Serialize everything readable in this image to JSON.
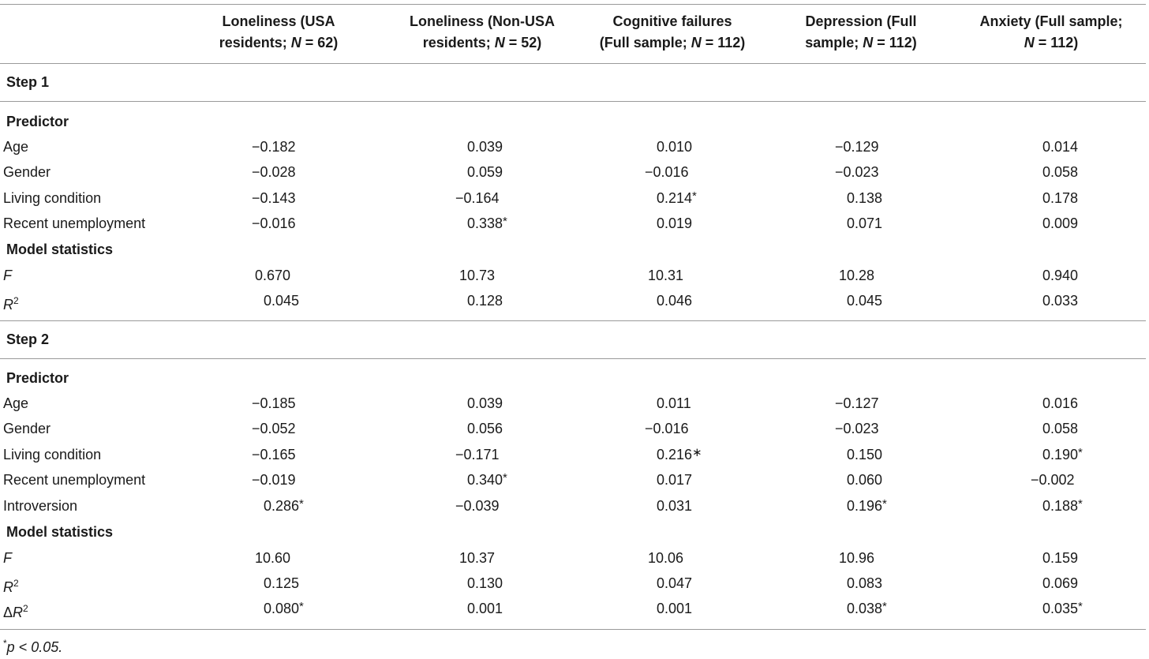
{
  "headers": [
    {
      "line1": "Loneliness (USA",
      "line2a": "residents; ",
      "line2n": "N",
      "line2b": " = 62)"
    },
    {
      "line1": "Loneliness (Non-USA",
      "line2a": "residents; ",
      "line2n": "N",
      "line2b": " = 52)"
    },
    {
      "line1": "Cognitive failures",
      "line2a": "(Full sample; ",
      "line2n": "N",
      "line2b": " = 112)"
    },
    {
      "line1": "Depression (Full",
      "line2a": "sample; ",
      "line2n": "N",
      "line2b": " = 112)"
    },
    {
      "line1": "Anxiety (Full sample;",
      "line2a": "",
      "line2n": "N",
      "line2b": " = 112)"
    }
  ],
  "step1": {
    "title": "Step 1",
    "predictor_heading": "Predictor",
    "rows": [
      {
        "label": "Age",
        "values": [
          "−0.182",
          "0.039",
          "0.010",
          "−0.129",
          "0.014"
        ],
        "stars": [
          "",
          "",
          "",
          "",
          ""
        ]
      },
      {
        "label": "Gender",
        "values": [
          "−0.028",
          "0.059",
          "−0.016",
          "−0.023",
          "0.058"
        ],
        "stars": [
          "",
          "",
          "",
          "",
          ""
        ]
      },
      {
        "label": "Living condition",
        "values": [
          "−0.143",
          "−0.164",
          "0.214",
          "0.138",
          "0.178"
        ],
        "stars": [
          "",
          "",
          "*",
          "",
          ""
        ]
      },
      {
        "label": "Recent unemployment",
        "values": [
          "−0.016",
          "0.338",
          "0.019",
          "0.071",
          "0.009"
        ],
        "stars": [
          "",
          "*",
          "",
          "",
          ""
        ]
      }
    ],
    "model_heading": "Model statistics",
    "F_label": "F",
    "F": [
      "0.670",
      "10.73",
      "10.31",
      "10.28",
      "0.940"
    ],
    "R2_label": "R",
    "R2_sup": "2",
    "R2": [
      "0.045",
      "0.128",
      "0.046",
      "0.045",
      "0.033"
    ]
  },
  "step2": {
    "title": "Step 2",
    "predictor_heading": "Predictor",
    "rows": [
      {
        "label": "Age",
        "values": [
          "−0.185",
          "0.039",
          "0.011",
          "−0.127",
          "0.016"
        ],
        "stars": [
          "",
          "",
          "",
          "",
          ""
        ]
      },
      {
        "label": "Gender",
        "values": [
          "−0.052",
          "0.056",
          "−0.016",
          "−0.023",
          "0.058"
        ],
        "stars": [
          "",
          "",
          "",
          "",
          ""
        ]
      },
      {
        "label": "Living condition",
        "values": [
          "−0.165",
          "−0.171",
          "0.216",
          "0.150",
          "0.190"
        ],
        "stars": [
          "",
          "",
          "∗",
          "",
          "*"
        ]
      },
      {
        "label": "Recent unemployment",
        "values": [
          "−0.019",
          "0.340",
          "0.017",
          "0.060",
          "−0.002"
        ],
        "stars": [
          "",
          "*",
          "",
          "",
          ""
        ]
      },
      {
        "label": "Introversion",
        "values": [
          "0.286",
          "−0.039",
          "0.031",
          "0.196",
          "0.188"
        ],
        "stars": [
          "*",
          "",
          "",
          "*",
          "*"
        ]
      }
    ],
    "model_heading": "Model statistics",
    "F_label": "F",
    "F": [
      "10.60",
      "10.37",
      "10.06",
      "10.96",
      "0.159"
    ],
    "R2_label": "R",
    "R2_sup": "2",
    "R2": [
      "0.125",
      "0.130",
      "0.047",
      "0.083",
      "0.069"
    ],
    "dR2_prefix": "Δ",
    "dR2_label": "R",
    "dR2_sup": "2",
    "dR2": [
      "0.080",
      "0.001",
      "0.001",
      "0.038",
      "0.035"
    ],
    "dR2_stars": [
      "*",
      "",
      "",
      "*",
      "*"
    ]
  },
  "footnote": {
    "star": "*",
    "text": "p < 0.05."
  }
}
